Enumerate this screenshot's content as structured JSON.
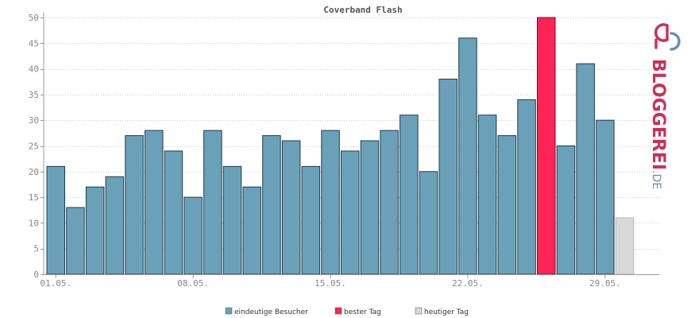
{
  "chart_data": {
    "type": "bar",
    "title": "Coverband Flash",
    "ylim": [
      0,
      50
    ],
    "yticks": [
      0,
      5,
      10,
      15,
      20,
      25,
      30,
      35,
      40,
      45,
      50
    ],
    "xticks": [
      {
        "index": 0,
        "label": "01.05."
      },
      {
        "index": 7,
        "label": "08.05."
      },
      {
        "index": 14,
        "label": "15.05."
      },
      {
        "index": 21,
        "label": "22.05."
      },
      {
        "index": 28,
        "label": "29.05."
      }
    ],
    "grid": true,
    "legend_position": "bottom",
    "values": [
      21,
      13,
      17,
      19,
      27,
      28,
      24,
      15,
      28,
      21,
      17,
      27,
      26,
      21,
      28,
      24,
      26,
      28,
      31,
      20,
      38,
      46,
      31,
      27,
      34,
      50,
      25,
      41,
      30,
      11
    ],
    "best_index": 25,
    "today_index": 29,
    "colors": {
      "normal": "#6aa1b9",
      "best": "#ff2356",
      "today": "#d8d8d8"
    },
    "legend": [
      {
        "label": "eindeutige Besucher",
        "color": "#6aa1b9"
      },
      {
        "label": "bester Tag",
        "color": "#ff2356"
      },
      {
        "label": "heutiger Tag",
        "color": "#d8d8d8"
      }
    ]
  },
  "logo": {
    "text": "BLOGGEREI",
    "suffix": ".DE",
    "primary_color": "#c8325a",
    "secondary_color": "#6a8fb0"
  }
}
